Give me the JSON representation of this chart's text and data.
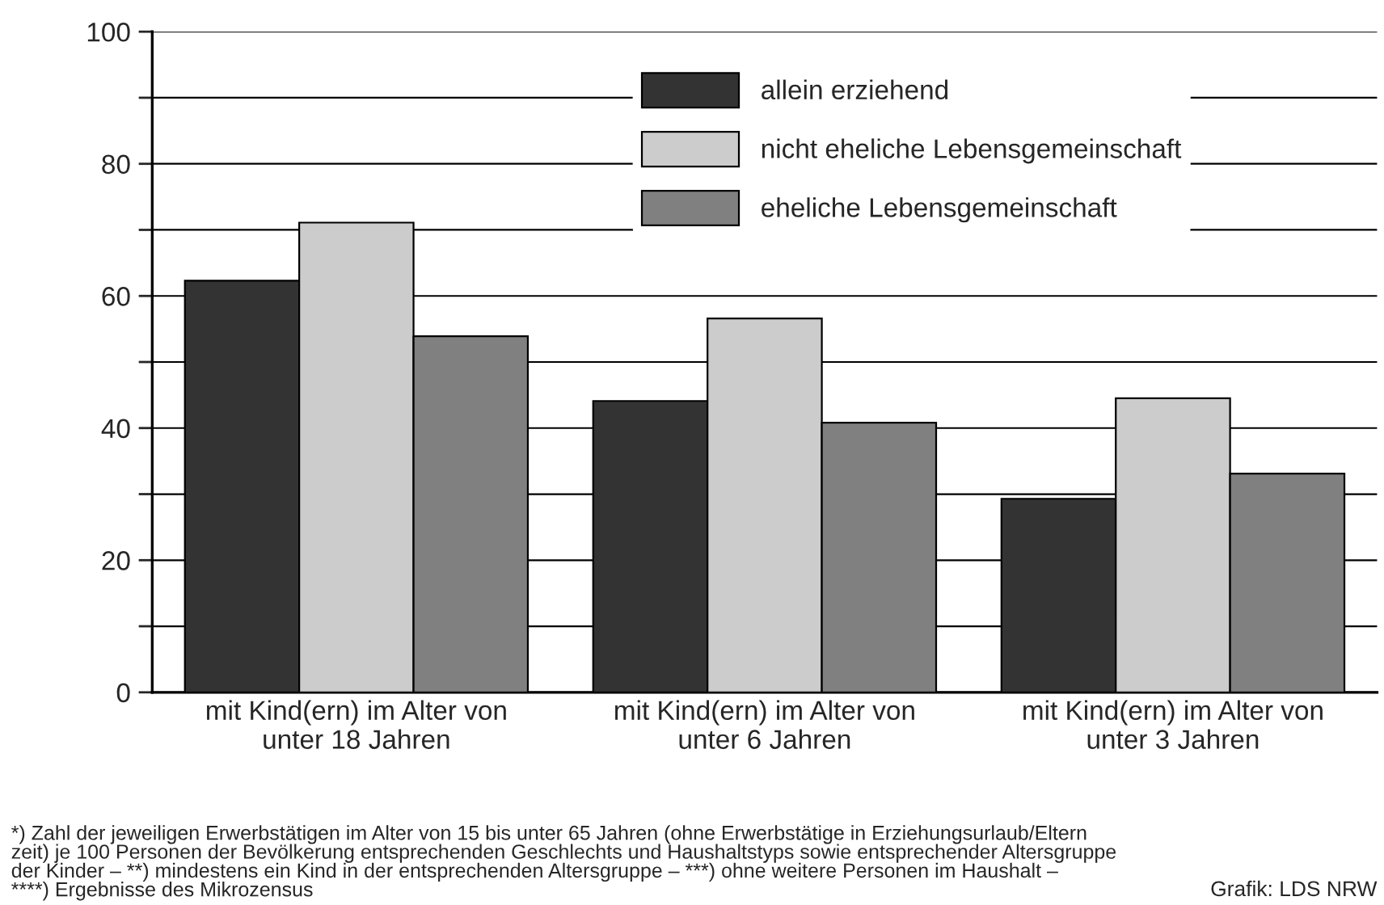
{
  "chart_data": {
    "type": "bar",
    "categories": [
      "mit Kind(ern) im Alter von\nunter 18 Jahren",
      "mit Kind(ern) im Alter von\nunter 6 Jahren",
      "mit Kind(ern) im Alter von\nunter 3 Jahren"
    ],
    "series": [
      {
        "name": "allein erziehend",
        "color": "#333333",
        "values": [
          62.3,
          44.1,
          29.3
        ]
      },
      {
        "name": "nicht eheliche Lebensgemeinschaft",
        "color": "#cccccc",
        "values": [
          71.1,
          56.6,
          44.5
        ]
      },
      {
        "name": "eheliche Lebensgemeinschaft",
        "color": "#808080",
        "values": [
          53.9,
          40.8,
          33.1
        ]
      }
    ],
    "ylim": [
      0,
      100
    ],
    "yticks": [
      0,
      {
        "value": 10,
        "label": null
      },
      20,
      {
        "value": 30,
        "label": null
      },
      40,
      {
        "value": 50,
        "label": null
      },
      60,
      {
        "value": 70,
        "label": null
      },
      80,
      {
        "value": 90,
        "label": null
      },
      100
    ],
    "grid": "y",
    "legend": "top",
    "annotations": [
      "*) Zahl der jeweiligen Erwerbstätigen im Alter von 15 bis unter 65 Jahren (ohne Erwerbstätige in Erziehungsurlaub/Eltern\nzeit) je 100 Personen der Bevölkerung entsprechenden Geschlechts und Haushaltstyps sowie entsprechender Altersgruppe\nder Kinder – **) mindestens ein Kind in der entsprechenden Altersgruppe – ***) ohne weitere Personen im Haushalt –\n****) Ergebnisse des Mikrozensus",
      "Grafik: LDS NRW"
    ]
  }
}
